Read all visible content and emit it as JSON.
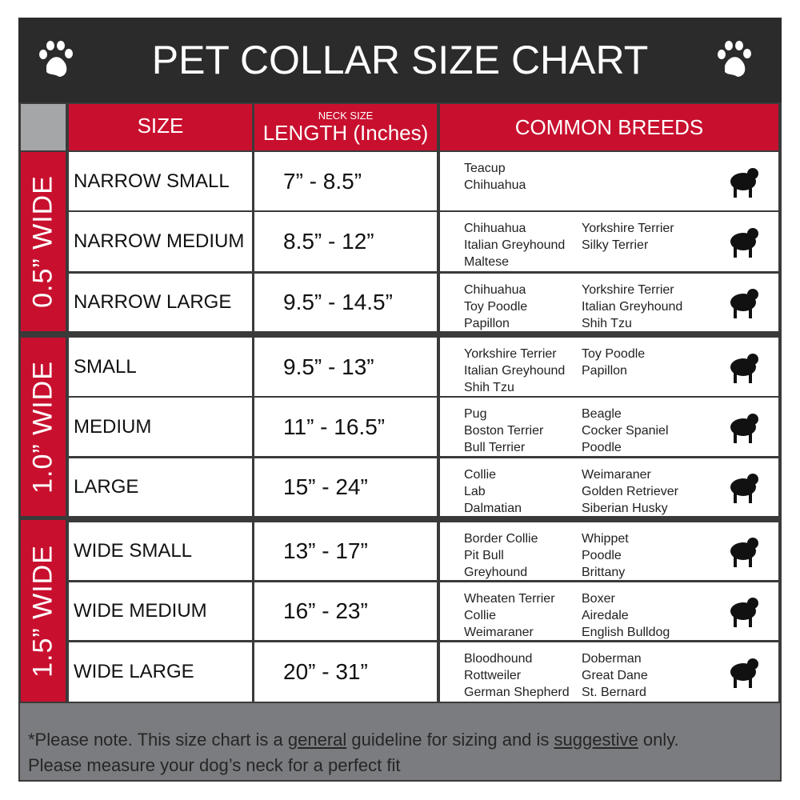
{
  "title": "PET COLLAR SIZE CHART",
  "icons": {
    "left": "paw-icon",
    "right": "paw-icon"
  },
  "colors": {
    "red": "#c8102e",
    "dark": "#2b2b2b",
    "gray": "#7b7c7f"
  },
  "header": {
    "size": "SIZE",
    "length_small": "NECK SIZE",
    "length": "LENGTH (Inches)",
    "breeds": "COMMON BREEDS"
  },
  "groups": [
    {
      "label": "0.5” WIDE"
    },
    {
      "label": "1.0” WIDE"
    },
    {
      "label": "1.5” WIDE"
    }
  ],
  "rows": [
    {
      "size": "NARROW SMALL",
      "length": "7” - 8.5”",
      "breeds1": [
        "Teacup",
        "Chihuahua"
      ],
      "breeds2": [],
      "icon": "yorkie-icon"
    },
    {
      "size": "NARROW MEDIUM",
      "length": "8.5” - 12”",
      "breeds1": [
        "Chihuahua",
        "Italian Greyhound",
        "Maltese"
      ],
      "breeds2": [
        "Yorkshire Terrier",
        "Silky Terrier"
      ],
      "icon": "chihuahua-icon"
    },
    {
      "size": "NARROW LARGE",
      "length": "9.5” - 14.5”",
      "breeds1": [
        "Chihuahua",
        "Toy Poodle",
        "Papillon"
      ],
      "breeds2": [
        "Yorkshire Terrier",
        "Italian Greyhound",
        "Shih Tzu"
      ],
      "icon": "pomeranian-icon"
    },
    {
      "size": "SMALL",
      "length": "9.5” - 13”",
      "breeds1": [
        "Yorkshire Terrier",
        "Italian Greyhound",
        "Shih Tzu"
      ],
      "breeds2": [
        "Toy Poodle",
        "Papillon"
      ],
      "icon": "pomeranian-icon"
    },
    {
      "size": "MEDIUM",
      "length": "11” - 16.5”",
      "breeds1": [
        "Pug",
        "Boston Terrier",
        "Bull Terrier"
      ],
      "breeds2": [
        "Beagle",
        "Cocker Spaniel",
        "Poodle"
      ],
      "icon": "dachshund-icon"
    },
    {
      "size": "LARGE",
      "length": "15” - 24”",
      "breeds1": [
        "Collie",
        "Lab",
        "Dalmatian"
      ],
      "breeds2": [
        "Weimaraner",
        "Golden Retriever",
        "Siberian Husky"
      ],
      "icon": "shepherd-icon"
    },
    {
      "size": "WIDE SMALL",
      "length": "13” - 17”",
      "breeds1": [
        "Border Collie",
        "Pit Bull",
        "Greyhound"
      ],
      "breeds2": [
        "Whippet",
        "Poodle",
        "Brittany"
      ],
      "icon": "bulldog-icon"
    },
    {
      "size": "WIDE MEDIUM",
      "length": "16” - 23”",
      "breeds1": [
        "Wheaten Terrier",
        "Collie",
        "Weimaraner"
      ],
      "breeds2": [
        "Boxer",
        "Airedale",
        "English Bulldog"
      ],
      "icon": "pitbull-icon"
    },
    {
      "size": "WIDE LARGE",
      "length": "20” - 31”",
      "breeds1": [
        "Bloodhound",
        "Rottweiler",
        "German Shepherd"
      ],
      "breeds2": [
        "Doberman",
        "Great Dane",
        "St. Bernard"
      ],
      "icon": "doberman-icon"
    }
  ],
  "footer": {
    "p1": "*Please note. This size chart is a ",
    "u1": "general",
    "p2": " guideline for sizing and is ",
    "u2": "suggestive",
    "p3": " only.",
    "line2": "Please measure your dog’s neck for a perfect fit"
  }
}
